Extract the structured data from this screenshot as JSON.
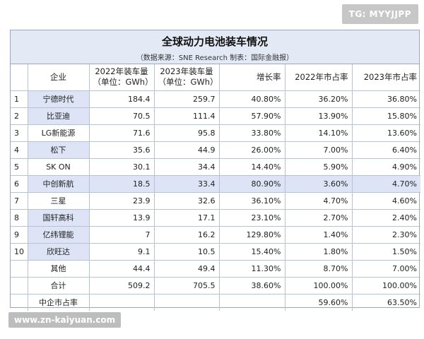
{
  "watermarks": {
    "top": "TG: MYYJJPP",
    "bottom": "www.zn-kaiyuan.com"
  },
  "table": {
    "title": "全球动力电池装车情况",
    "subtitle": "（数据来源：SNE Research   制表：国际金融报）",
    "headers": {
      "company": "企业",
      "vol2022": "2022年装车量",
      "vol2023": "2023年装车量",
      "unit": "（单位：GWh）",
      "growth": "增长率",
      "share2022": "2022年市占率",
      "share2023": "2023年市占率"
    },
    "rows": [
      {
        "rank": "1",
        "company": "宁德时代",
        "vol2022": "184.4",
        "vol2023": "259.7",
        "growth": "40.80%",
        "share2022": "36.20%",
        "share2023": "36.80%"
      },
      {
        "rank": "2",
        "company": "比亚迪",
        "vol2022": "70.5",
        "vol2023": "111.4",
        "growth": "57.90%",
        "share2022": "13.90%",
        "share2023": "15.80%"
      },
      {
        "rank": "3",
        "company": "LG新能源",
        "vol2022": "71.6",
        "vol2023": "95.8",
        "growth": "33.80%",
        "share2022": "14.10%",
        "share2023": "13.60%"
      },
      {
        "rank": "4",
        "company": "松下",
        "vol2022": "35.6",
        "vol2023": "44.9",
        "growth": "26.00%",
        "share2022": "7.00%",
        "share2023": "6.40%"
      },
      {
        "rank": "5",
        "company": "SK ON",
        "vol2022": "30.1",
        "vol2023": "34.4",
        "growth": "14.40%",
        "share2022": "5.90%",
        "share2023": "4.90%"
      },
      {
        "rank": "6",
        "company": "中创新航",
        "vol2022": "18.5",
        "vol2023": "33.4",
        "growth": "80.90%",
        "share2022": "3.60%",
        "share2023": "4.70%"
      },
      {
        "rank": "7",
        "company": "三星",
        "vol2022": "23.9",
        "vol2023": "32.6",
        "growth": "36.10%",
        "share2022": "4.70%",
        "share2023": "4.60%"
      },
      {
        "rank": "8",
        "company": "国轩高科",
        "vol2022": "13.9",
        "vol2023": "17.1",
        "growth": "23.10%",
        "share2022": "2.70%",
        "share2023": "2.40%"
      },
      {
        "rank": "9",
        "company": "亿纬锂能",
        "vol2022": "7",
        "vol2023": "16.2",
        "growth": "129.80%",
        "share2022": "1.40%",
        "share2023": "2.30%"
      },
      {
        "rank": "10",
        "company": "欣旺达",
        "vol2022": "9.1",
        "vol2023": "10.5",
        "growth": "15.40%",
        "share2022": "1.80%",
        "share2023": "1.50%"
      },
      {
        "rank": "",
        "company": "其他",
        "vol2022": "44.4",
        "vol2023": "49.4",
        "growth": "11.30%",
        "share2022": "8.70%",
        "share2023": "7.00%"
      },
      {
        "rank": "",
        "company": "合计",
        "vol2022": "509.2",
        "vol2023": "705.5",
        "growth": "38.60%",
        "share2022": "100.00%",
        "share2023": "100.00%"
      },
      {
        "rank": "",
        "company": "中企市占率",
        "vol2022": "",
        "vol2023": "",
        "growth": "",
        "share2022": "59.60%",
        "share2023": "63.50%"
      }
    ]
  }
}
